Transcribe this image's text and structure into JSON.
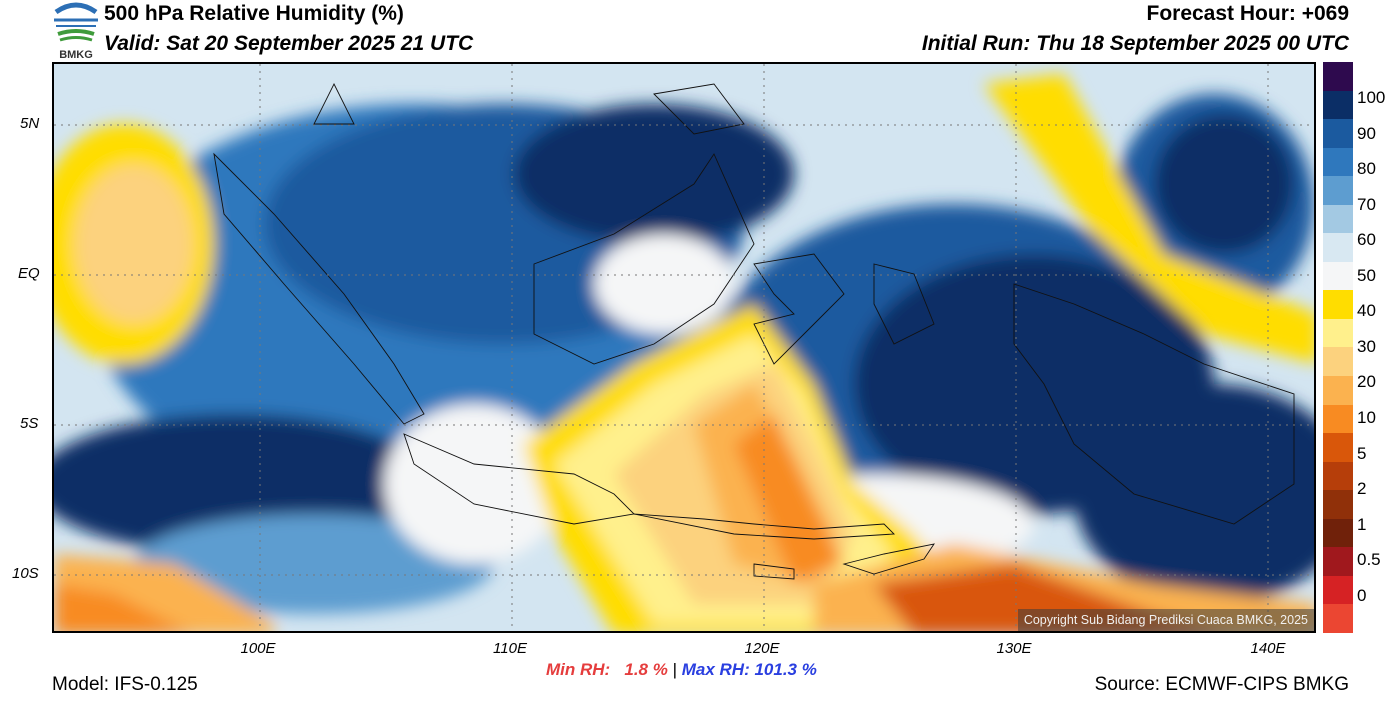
{
  "header": {
    "logo_text": "BMKG",
    "title": "500 hPa Relative Humidity (%)",
    "valid": "Valid: Sat 20 September 2025 21 UTC",
    "forecast_hour": "Forecast Hour: +069",
    "initial_run": "Initial Run: Thu 18 September 2025 00 UTC"
  },
  "map": {
    "lat_labels": [
      "5N",
      "EQ",
      "5S",
      "10S"
    ],
    "lon_labels": [
      "100E",
      "110E",
      "120E",
      "130E",
      "140E"
    ],
    "copyright": "Copyright Sub Bidang Prediksi Cuaca BMKG, 2025"
  },
  "legend": {
    "labels": [
      "100",
      "90",
      "80",
      "70",
      "60",
      "50",
      "40",
      "30",
      "20",
      "10",
      "5",
      "2",
      "1",
      "0.5",
      "0"
    ],
    "colors": [
      "#2e0a4e",
      "#0b2e66",
      "#1b5a9f",
      "#2f78bd",
      "#5d9dd0",
      "#a3c9e3",
      "#d8e8f2",
      "#f5f6f7",
      "#ffdd00",
      "#fff08c",
      "#fcd27e",
      "#fbb24f",
      "#f88b22",
      "#d9570a",
      "#b63e0a",
      "#903009",
      "#70210a",
      "#a0181d",
      "#d62224",
      "#eb4632"
    ]
  },
  "stats": {
    "min": "Min RH:   1.8 %",
    "separator": " | ",
    "max": "Max RH: 101.3 %"
  },
  "footer": {
    "model": "Model: IFS-0.125",
    "source": "Source: ECMWF-CIPS BMKG"
  }
}
